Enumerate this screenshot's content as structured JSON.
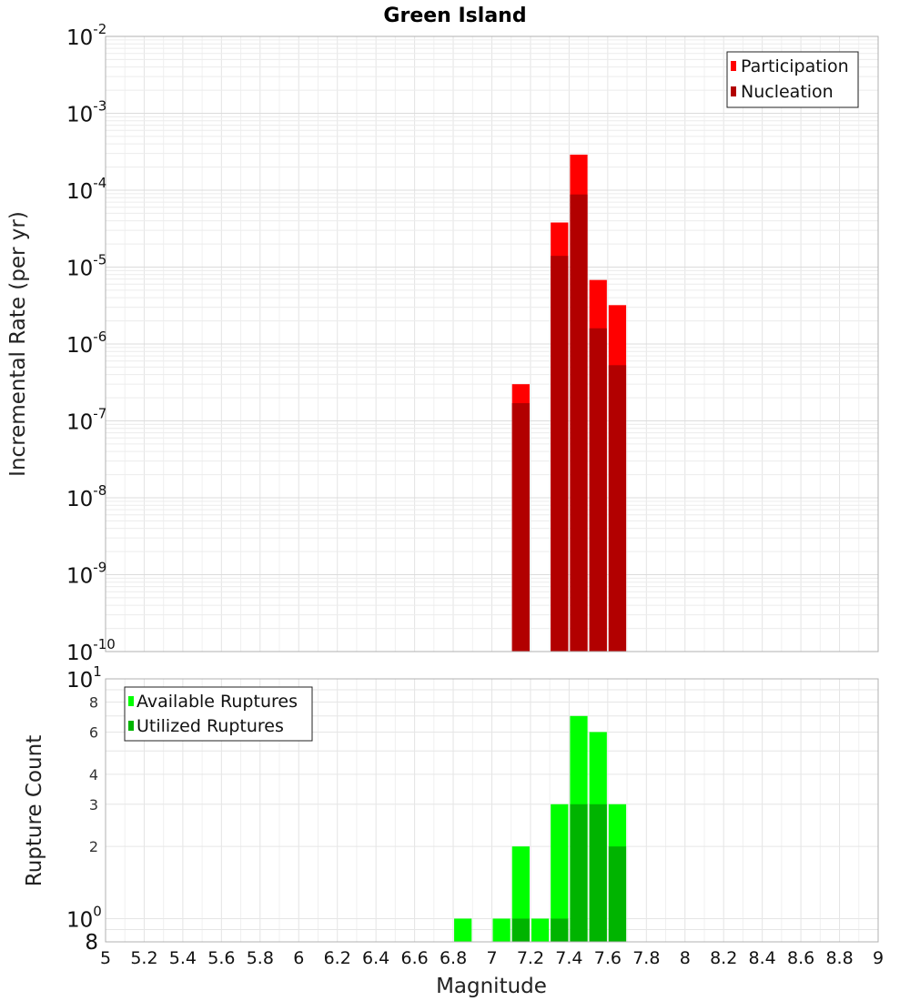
{
  "title": "Green Island",
  "colors": {
    "participation": "#ff0000",
    "nucleation": "#b20000",
    "available": "#00ff00",
    "utilized": "#00b400"
  },
  "chart_data": [
    {
      "type": "bar",
      "ylabel": "Incremental Rate (per yr)",
      "yscale": "log",
      "ylim": [
        1e-10,
        0.01
      ],
      "xlim": [
        5,
        9
      ],
      "yticks": [
        {
          "base": "10",
          "exp": "-2"
        },
        {
          "base": "10",
          "exp": "-3"
        },
        {
          "base": "10",
          "exp": "-4"
        },
        {
          "base": "10",
          "exp": "-5"
        },
        {
          "base": "10",
          "exp": "-6"
        },
        {
          "base": "10",
          "exp": "-7"
        },
        {
          "base": "10",
          "exp": "-8"
        },
        {
          "base": "10",
          "exp": "-9"
        },
        {
          "base": "10",
          "exp": "-10"
        }
      ],
      "legend": [
        "Participation",
        "Nucleation"
      ],
      "legend_position": "top-right",
      "series": [
        {
          "name": "Participation",
          "x": [
            7.15,
            7.35,
            7.45,
            7.55,
            7.65
          ],
          "values": [
            3e-07,
            3.8e-05,
            0.00029,
            6.8e-06,
            3.2e-06
          ]
        },
        {
          "name": "Nucleation",
          "x": [
            7.15,
            7.35,
            7.45,
            7.55,
            7.65
          ],
          "values": [
            1.7e-07,
            1.4e-05,
            8.8e-05,
            1.6e-06,
            5.3e-07
          ]
        }
      ]
    },
    {
      "type": "bar",
      "ylabel": "Rupture Count",
      "yscale": "log",
      "ylim": [
        0.8,
        10
      ],
      "xlim": [
        5,
        9
      ],
      "xlabel": "Magnitude",
      "xticks": [
        "5",
        "5.2",
        "5.4",
        "5.6",
        "5.8",
        "6",
        "6.2",
        "6.4",
        "6.6",
        "6.8",
        "7",
        "7.2",
        "7.4",
        "7.6",
        "7.8",
        "8",
        "8.2",
        "8.4",
        "8.6",
        "8.8",
        "9"
      ],
      "ytick_major": [
        {
          "base": "10",
          "exp": "1",
          "value": 10
        },
        {
          "base": "10",
          "exp": "0",
          "value": 1
        }
      ],
      "ytick_minor": [
        {
          "label": "8",
          "value": 8
        },
        {
          "label": "6",
          "value": 6
        },
        {
          "label": "4",
          "value": 4
        },
        {
          "label": "3",
          "value": 3
        },
        {
          "label": "2",
          "value": 2
        }
      ],
      "ytick_bottom": {
        "label": "8",
        "value": 0.8
      },
      "legend": [
        "Available Ruptures",
        "Utilized Ruptures"
      ],
      "legend_position": "top-left",
      "series": [
        {
          "name": "Available Ruptures",
          "x": [
            6.85,
            7.05,
            7.15,
            7.25,
            7.35,
            7.45,
            7.55,
            7.65
          ],
          "values": [
            1,
            1,
            2,
            1,
            3,
            7,
            6,
            3
          ]
        },
        {
          "name": "Utilized Ruptures",
          "x": [
            7.15,
            7.35,
            7.45,
            7.55,
            7.65
          ],
          "values": [
            1,
            1,
            3,
            3,
            2
          ]
        }
      ]
    }
  ]
}
